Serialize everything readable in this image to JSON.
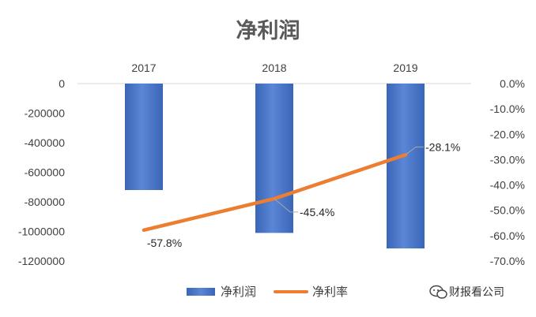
{
  "chart_data": {
    "type": "bar",
    "title": "净利润",
    "categories": [
      "2017",
      "2018",
      "2019"
    ],
    "series": [
      {
        "name": "净利润",
        "type": "bar",
        "axis": "left",
        "values": [
          -720000,
          -1010000,
          -1115000
        ]
      },
      {
        "name": "净利率",
        "type": "line",
        "axis": "right",
        "values": [
          -57.8,
          -45.4,
          -28.1
        ],
        "labels": [
          "-57.8%",
          "-45.4%",
          "-28.1%"
        ]
      }
    ],
    "y_left": {
      "min": -1200000,
      "max": 0,
      "step": 200000,
      "tick_labels": [
        "0",
        "-200000",
        "-400000",
        "-600000",
        "-800000",
        "-1000000",
        "-1200000"
      ]
    },
    "y_right": {
      "min": -70,
      "max": 0,
      "step": 10,
      "tick_labels": [
        "0.0%",
        "-10.0%",
        "-20.0%",
        "-30.0%",
        "-40.0%",
        "-50.0%",
        "-60.0%",
        "-70.0%"
      ]
    },
    "x_axis_position": "top",
    "grid": false,
    "legend": {
      "position": "bottom",
      "items": [
        "净利润",
        "净利率"
      ]
    },
    "colors": {
      "bar": "#4472c4",
      "line": "#ed7d31",
      "axis": "#d9d9d9",
      "leader": "#a6a6a6"
    }
  },
  "watermark": {
    "text": "财报看公司",
    "icon": "wechat-icon"
  }
}
